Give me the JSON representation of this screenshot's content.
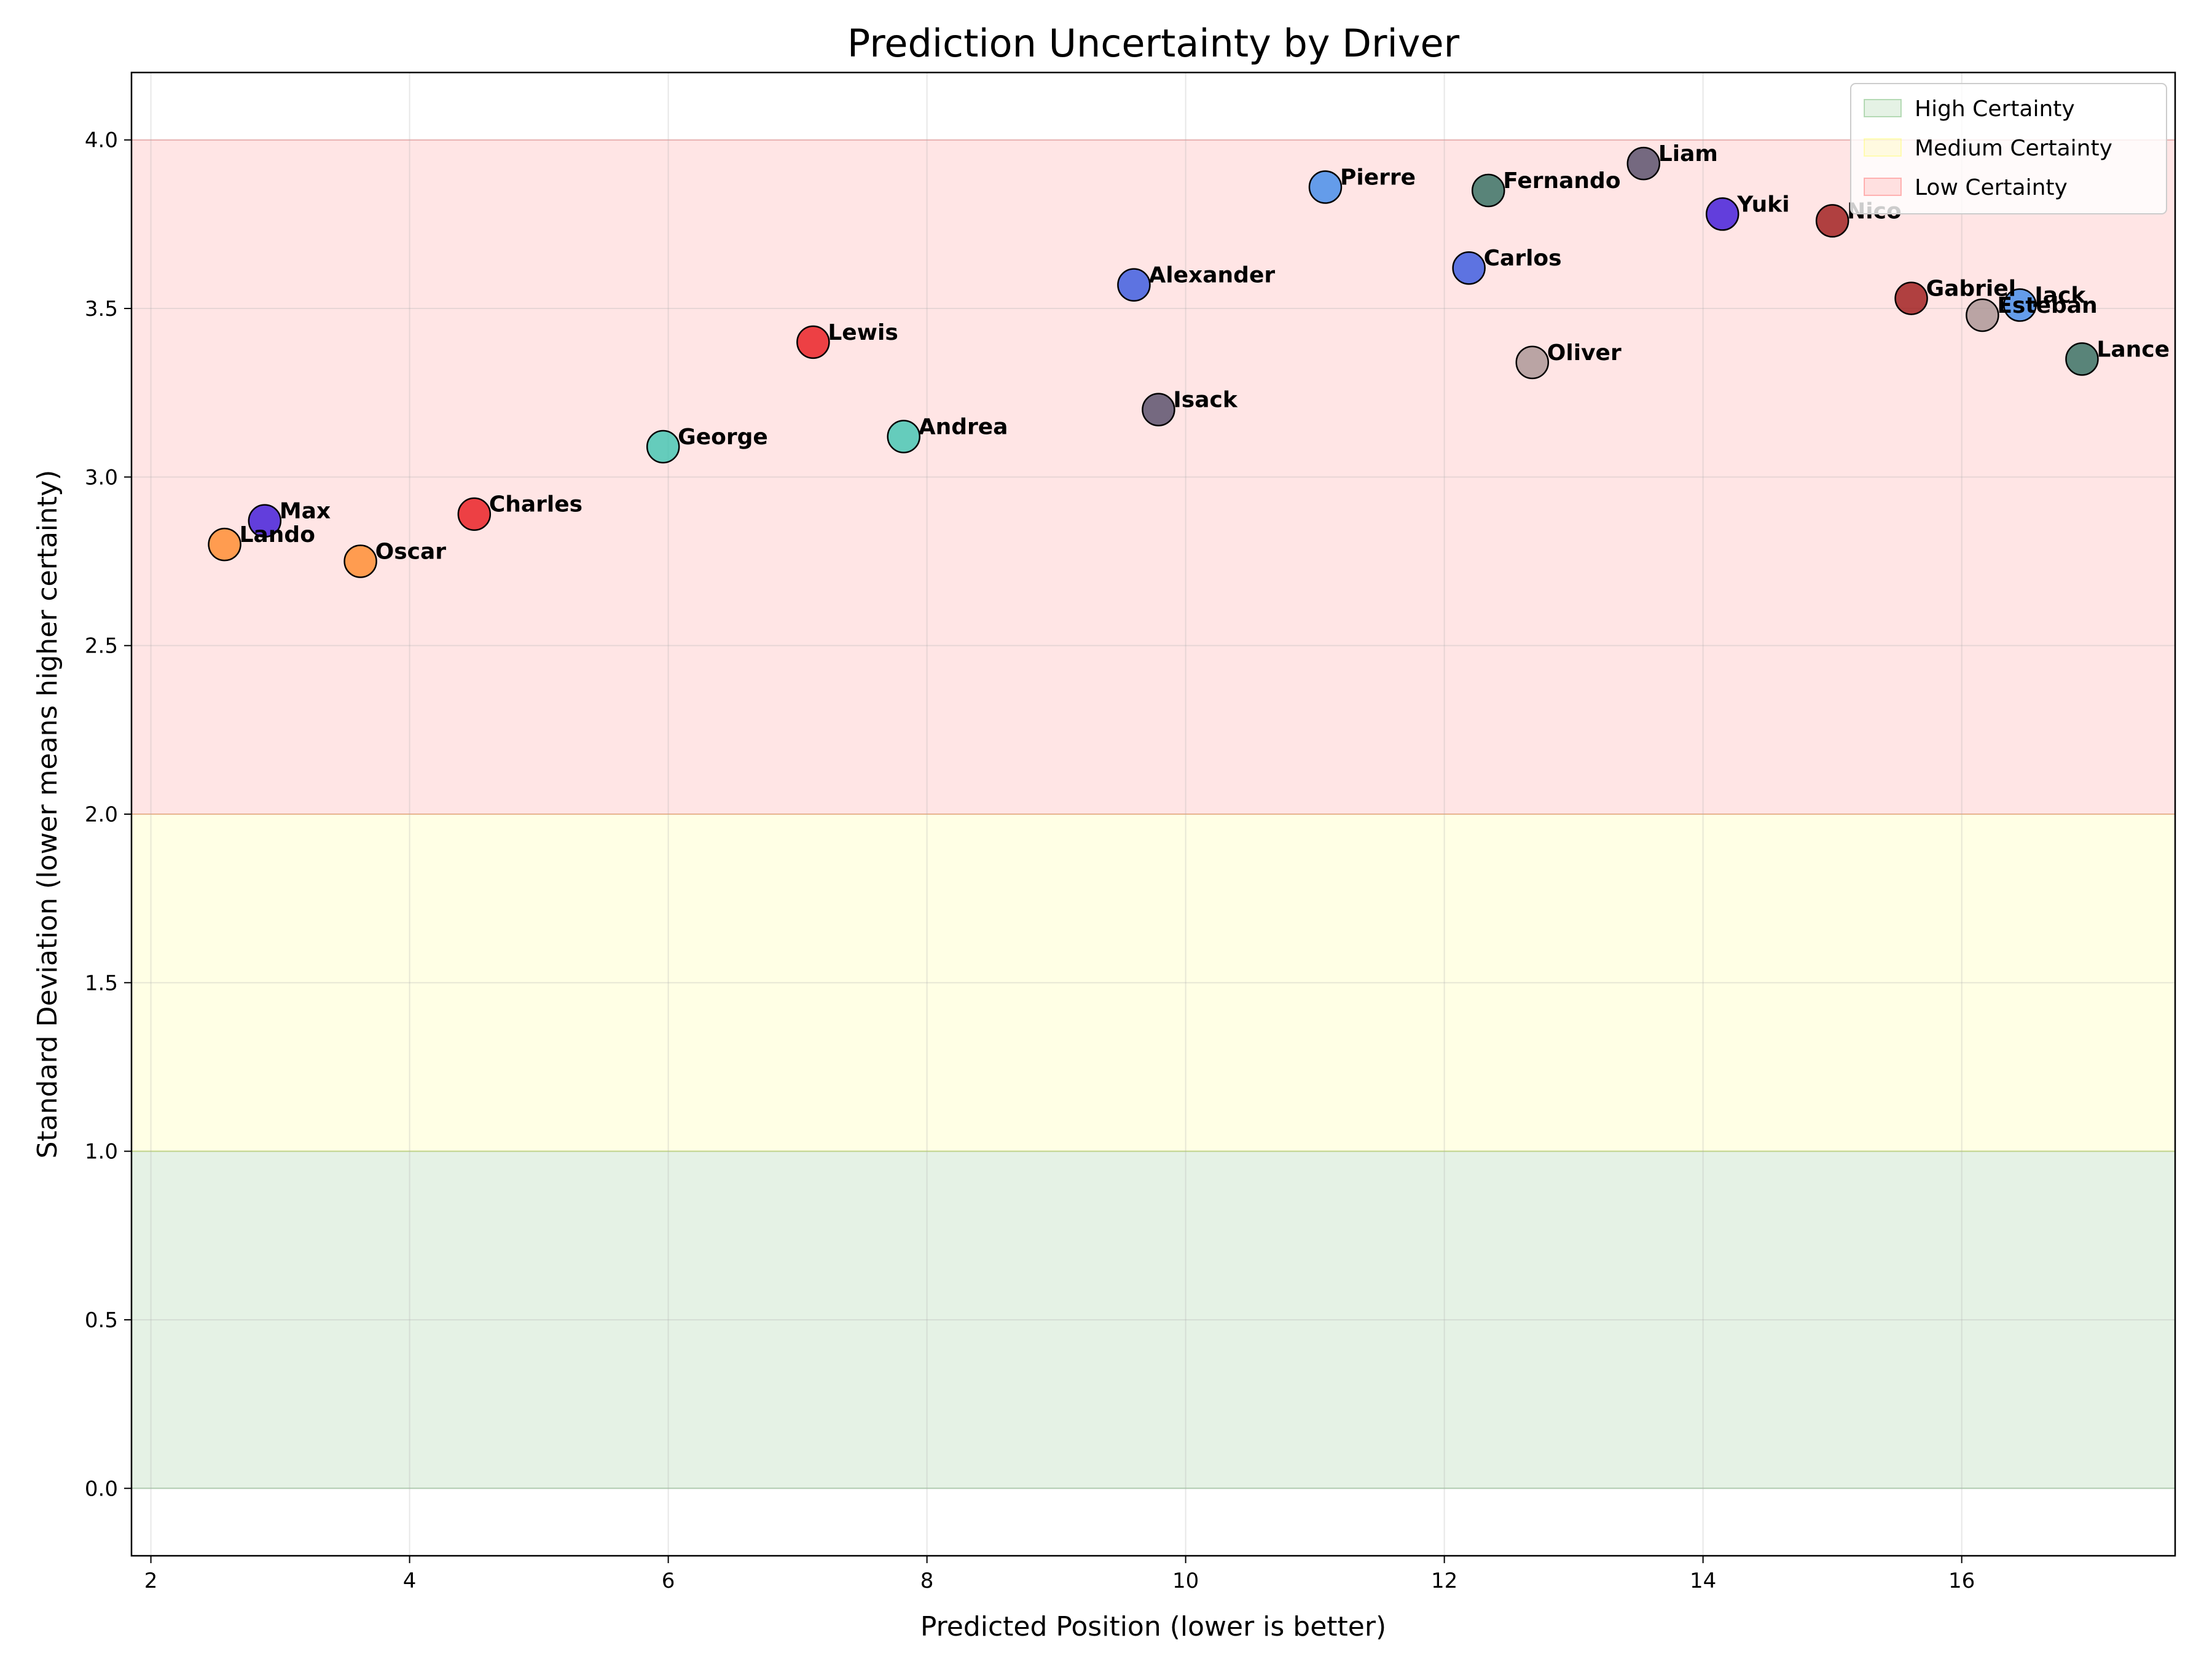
{
  "chart_data": {
    "type": "scatter",
    "title": "Prediction Uncertainty by Driver",
    "xlabel": "Predicted Position (lower is better)",
    "ylabel": "Standard Deviation (lower means higher certainty)",
    "xlim": [
      1.85,
      17.65
    ],
    "ylim": [
      -0.2,
      4.2
    ],
    "xticks": [
      2,
      4,
      6,
      8,
      10,
      12,
      14,
      16
    ],
    "yticks": [
      0.0,
      0.5,
      1.0,
      1.5,
      2.0,
      2.5,
      3.0,
      3.5,
      4.0
    ],
    "grid": true,
    "legend_position": "top-right",
    "bands": [
      {
        "name": "High Certainty",
        "y0": 0.0,
        "y1": 1.0,
        "color": "#008000",
        "opacity": 0.1
      },
      {
        "name": "Medium Certainty",
        "y0": 1.0,
        "y1": 2.0,
        "color": "#ffff00",
        "opacity": 0.1
      },
      {
        "name": "Low Certainty",
        "y0": 2.0,
        "y1": 4.0,
        "color": "#ff0000",
        "opacity": 0.1
      }
    ],
    "points": [
      {
        "label": "Max",
        "x": 2.88,
        "y": 2.87,
        "color": "#3b14d9"
      },
      {
        "label": "Lando",
        "x": 2.57,
        "y": 2.8,
        "color": "#ff8a2b"
      },
      {
        "label": "Oscar",
        "x": 3.62,
        "y": 2.75,
        "color": "#ff8a2b"
      },
      {
        "label": "Charles",
        "x": 4.5,
        "y": 2.89,
        "color": "#e8161b"
      },
      {
        "label": "George",
        "x": 5.96,
        "y": 3.09,
        "color": "#3fc5b2"
      },
      {
        "label": "Lewis",
        "x": 7.12,
        "y": 3.4,
        "color": "#e8161b"
      },
      {
        "label": "Andrea",
        "x": 7.82,
        "y": 3.12,
        "color": "#3fc5b2"
      },
      {
        "label": "Alexander",
        "x": 9.6,
        "y": 3.57,
        "color": "#3556e0"
      },
      {
        "label": "Isack",
        "x": 9.79,
        "y": 3.2,
        "color": "#524a66"
      },
      {
        "label": "Pierre",
        "x": 11.08,
        "y": 3.86,
        "color": "#3d8aeb"
      },
      {
        "label": "Carlos",
        "x": 12.19,
        "y": 3.62,
        "color": "#3556e0"
      },
      {
        "label": "Fernando",
        "x": 12.34,
        "y": 3.85,
        "color": "#2f6b5e"
      },
      {
        "label": "Oliver",
        "x": 12.68,
        "y": 3.34,
        "color": "#a99494"
      },
      {
        "label": "Liam",
        "x": 13.54,
        "y": 3.93,
        "color": "#524a66"
      },
      {
        "label": "Yuki",
        "x": 14.15,
        "y": 3.78,
        "color": "#3b14d9"
      },
      {
        "label": "Nico",
        "x": 15.0,
        "y": 3.76,
        "color": "#9c1616"
      },
      {
        "label": "Gabriel",
        "x": 15.61,
        "y": 3.53,
        "color": "#9c1616"
      },
      {
        "label": "Jack",
        "x": 16.45,
        "y": 3.51,
        "color": "#3d8aeb"
      },
      {
        "label": "Esteban",
        "x": 16.16,
        "y": 3.48,
        "color": "#a99494"
      },
      {
        "label": "Lance",
        "x": 16.93,
        "y": 3.35,
        "color": "#2f6b5e"
      }
    ]
  }
}
